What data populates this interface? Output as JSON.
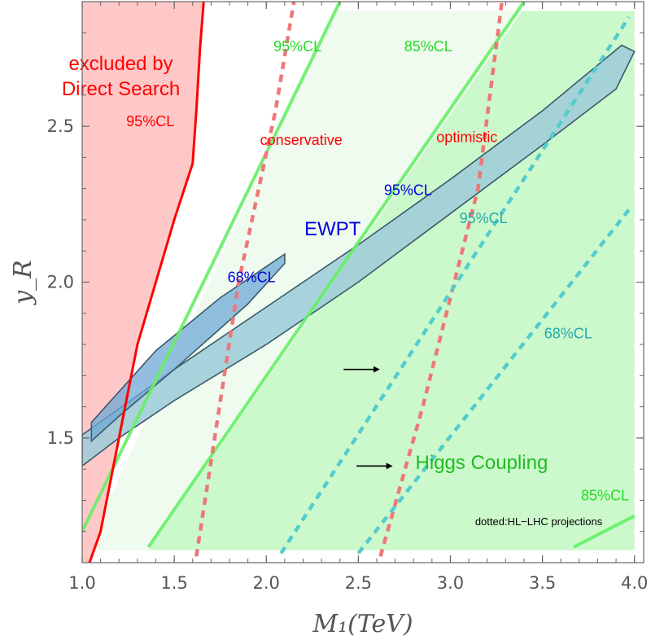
{
  "chart_data": {
    "type": "area",
    "xlabel": "M₁(TeV)",
    "ylabel": "y_R",
    "xlim": [
      1.0,
      4.05
    ],
    "ylim": [
      1.1,
      2.9
    ],
    "x_ticks": [
      1.0,
      1.5,
      2.0,
      2.5,
      3.0,
      3.5,
      4.0
    ],
    "x_tick_labels": [
      "1.0",
      "1.5",
      "2.0",
      "2.5",
      "3.0",
      "3.5",
      "4.0"
    ],
    "y_ticks": [
      1.5,
      2.0,
      2.5
    ],
    "y_tick_labels": [
      "1.5",
      "2.0",
      "2.5"
    ],
    "grid": false,
    "colors": {
      "direct_search": "#ff0000",
      "direct_search_fill": "#ffc8c8",
      "higgs_fill_85": "#ccf9cc",
      "higgs_fill_95": "#effbef",
      "higgs_line": "#66ee66",
      "higgs_text": "#22dd22",
      "ewpt_fill_95": "#9ccbd8",
      "ewpt_fill_68": "#6fa8d6",
      "ewpt_edge": "#3a5a6a",
      "hl_lhc_red": "#ee7777",
      "hl_lhc_cyan": "#55cccc",
      "ewpt_text": "#0000dd",
      "cyan_text": "#22aaaa"
    },
    "series": [
      {
        "kind": "direct-search-bound",
        "points": [
          [
            1.04,
            1.1
          ],
          [
            1.1,
            1.2
          ],
          [
            1.2,
            1.5
          ],
          [
            1.3,
            1.8
          ],
          [
            1.4,
            2.0
          ],
          [
            1.5,
            2.2
          ],
          [
            1.6,
            2.38
          ],
          [
            1.62,
            2.55
          ],
          [
            1.64,
            2.75
          ],
          [
            1.66,
            2.9
          ]
        ]
      },
      {
        "kind": "higgs-95-boundary",
        "points": [
          [
            1.0,
            1.2
          ],
          [
            2.4,
            2.9
          ]
        ]
      },
      {
        "kind": "higgs-85-boundary",
        "points": [
          [
            1.36,
            1.15
          ],
          [
            3.4,
            2.9
          ]
        ]
      },
      {
        "kind": "higgs-85-lower-boundary",
        "points": [
          [
            3.67,
            1.15
          ],
          [
            4.0,
            1.25
          ]
        ]
      },
      {
        "kind": "conservative-projection",
        "points": [
          [
            1.62,
            1.12
          ],
          [
            1.85,
            2.0
          ],
          [
            2.05,
            2.55
          ],
          [
            2.15,
            2.9
          ]
        ]
      },
      {
        "kind": "optimistic-projection",
        "points": [
          [
            2.62,
            1.12
          ],
          [
            2.85,
            1.6
          ],
          [
            3.15,
            2.3
          ],
          [
            3.28,
            2.9
          ]
        ]
      },
      {
        "kind": "hl-lhc-95-projection",
        "points": [
          [
            2.08,
            1.13
          ],
          [
            3.97,
            2.85
          ]
        ]
      },
      {
        "kind": "hl-lhc-68-projection",
        "points": [
          [
            2.5,
            1.13
          ],
          [
            3.98,
            2.24
          ]
        ]
      }
    ],
    "regions": {
      "higgs_95_polygon": [
        [
          1.02,
          1.14
        ],
        [
          4.0,
          1.14
        ],
        [
          4.0,
          2.87
        ],
        [
          2.37,
          2.87
        ]
      ],
      "higgs_85_polygon": [
        [
          1.36,
          1.14
        ],
        [
          4.0,
          1.14
        ],
        [
          4.0,
          2.87
        ],
        [
          3.39,
          2.87
        ]
      ],
      "ewpt_95_ellipse": [
        [
          1.0,
          1.51
        ],
        [
          1.5,
          1.72
        ],
        [
          2.0,
          1.92
        ],
        [
          2.5,
          2.12
        ],
        [
          3.0,
          2.33
        ],
        [
          3.5,
          2.55
        ],
        [
          3.93,
          2.76
        ],
        [
          4.0,
          2.74
        ],
        [
          3.9,
          2.62
        ],
        [
          3.5,
          2.44
        ],
        [
          3.0,
          2.22
        ],
        [
          2.5,
          2.0
        ],
        [
          2.0,
          1.8
        ],
        [
          1.5,
          1.62
        ],
        [
          1.2,
          1.5
        ],
        [
          1.0,
          1.41
        ]
      ],
      "ewpt_68_ellipse": [
        [
          1.05,
          1.55
        ],
        [
          1.4,
          1.78
        ],
        [
          1.75,
          1.95
        ],
        [
          2.0,
          2.05
        ],
        [
          2.1,
          2.09
        ],
        [
          2.1,
          2.06
        ],
        [
          1.9,
          1.93
        ],
        [
          1.5,
          1.72
        ],
        [
          1.2,
          1.57
        ],
        [
          1.05,
          1.49
        ]
      ]
    },
    "annotations": [
      {
        "text": "excluded by",
        "x": 1.21,
        "y": 2.68,
        "color": "#ff0000",
        "size": 24
      },
      {
        "text": "Direct Search",
        "x": 1.21,
        "y": 2.6,
        "color": "#ff0000",
        "size": 24
      },
      {
        "text": "95%CL",
        "x": 1.37,
        "y": 2.5,
        "color": "#ff0000",
        "size": 18
      },
      {
        "text": "95%CL",
        "x": 2.17,
        "y": 2.74,
        "color": "#22dd22",
        "size": 18
      },
      {
        "text": "85%CL",
        "x": 2.88,
        "y": 2.74,
        "color": "#22dd22",
        "size": 18
      },
      {
        "text": "conservative",
        "x": 2.19,
        "y": 2.44,
        "color": "#ff0000",
        "size": 18
      },
      {
        "text": "optimistic",
        "x": 3.09,
        "y": 2.45,
        "color": "#ff0000",
        "size": 18
      },
      {
        "text": "95%CL",
        "x": 2.77,
        "y": 2.28,
        "color": "#0000dd",
        "size": 18
      },
      {
        "text": "95%CL",
        "x": 3.18,
        "y": 2.19,
        "color": "#22aaaa",
        "size": 18
      },
      {
        "text": "EWPT",
        "x": 2.36,
        "y": 2.15,
        "color": "#0000dd",
        "size": 24
      },
      {
        "text": "68%CL",
        "x": 1.92,
        "y": 2.0,
        "color": "#0000dd",
        "size": 18
      },
      {
        "text": "68%CL",
        "x": 3.64,
        "y": 1.82,
        "color": "#22aaaa",
        "size": 18
      },
      {
        "text": "Higgs Coupling",
        "x": 3.17,
        "y": 1.4,
        "color": "#22bb22",
        "size": 24
      },
      {
        "text": "85%CL",
        "x": 3.84,
        "y": 1.3,
        "color": "#22dd22",
        "size": 18
      },
      {
        "text": "dotted:HL−LHC projections",
        "x": 3.48,
        "y": 1.22,
        "color": "#000000",
        "size": 13
      }
    ],
    "arrows": [
      {
        "from": [
          2.42,
          1.72
        ],
        "to": [
          2.61,
          1.72
        ]
      },
      {
        "from": [
          2.49,
          1.41
        ],
        "to": [
          2.68,
          1.41
        ]
      }
    ]
  }
}
